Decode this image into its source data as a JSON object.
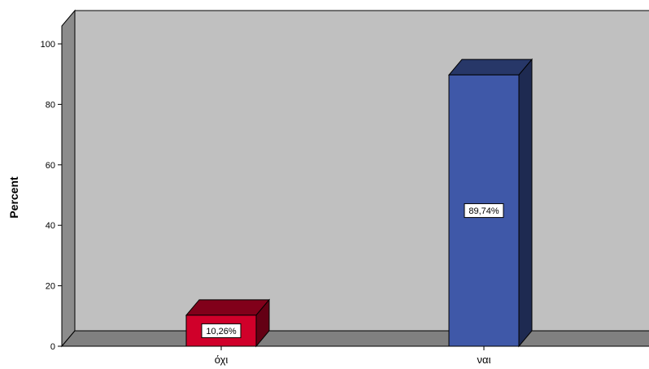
{
  "chart_data": {
    "type": "bar",
    "categories": [
      "όχι",
      "ναι"
    ],
    "values": [
      10.26,
      89.74
    ],
    "value_labels": [
      "10,26%",
      "89,74%"
    ],
    "ylabel": "Percent",
    "xlabel": "",
    "ylim": [
      0,
      100
    ],
    "yticks": [
      "0",
      "20",
      "40",
      "60",
      "80",
      "100"
    ],
    "grid": false,
    "legend": "none",
    "style": "3d",
    "colors": [
      "#d0002a",
      "#3f58a8"
    ],
    "plot_background": "#c0c0c0",
    "floor_color": "#808080",
    "wall_color": "#8c8c8c"
  }
}
